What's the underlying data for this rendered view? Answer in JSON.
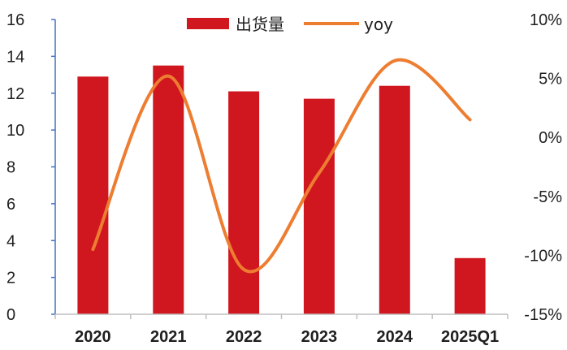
{
  "chart_data": {
    "type": "bar",
    "categories": [
      "2020",
      "2021",
      "2022",
      "2023",
      "2024",
      "2025Q1"
    ],
    "series": [
      {
        "name": "出货量",
        "type": "bar",
        "axis": "left",
        "color": "#d0171f",
        "values": [
          12.9,
          13.5,
          12.1,
          11.7,
          12.4,
          3.05
        ]
      },
      {
        "name": "yoy",
        "type": "line",
        "axis": "right",
        "color": "#ed7d31",
        "smooth": true,
        "values": [
          -9.5,
          5.2,
          -11.2,
          -3.0,
          6.5,
          1.5
        ]
      }
    ],
    "y_left": {
      "ylim": [
        0,
        16
      ],
      "ticks": [
        "0",
        "2",
        "4",
        "6",
        "8",
        "10",
        "12",
        "14",
        "16"
      ]
    },
    "y_right": {
      "ylim": [
        -15,
        10
      ],
      "ticks": [
        "-15%",
        "-10%",
        "-5%",
        "0%",
        "5%",
        "10%"
      ]
    },
    "xlabel": "",
    "ylabel": "",
    "title": "",
    "grid": false,
    "legend_position": "top-center"
  }
}
